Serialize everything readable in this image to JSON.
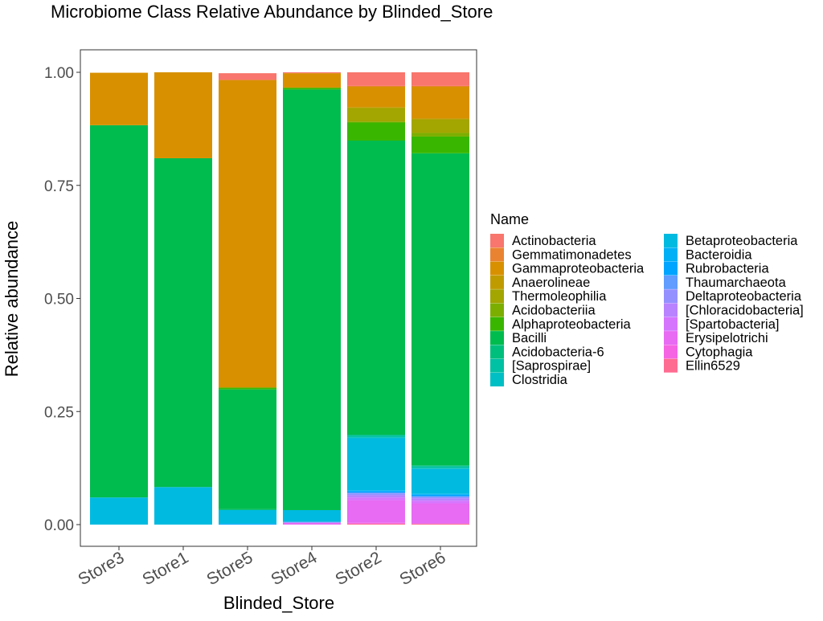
{
  "chart_data": {
    "type": "bar",
    "stacked": true,
    "title": "Microbiome Class Relative Abundance by Blinded_Store",
    "xlabel": "Blinded_Store",
    "ylabel": "Relative abundance",
    "ylim": [
      0,
      1
    ],
    "yticks": [
      0,
      0.25,
      0.5,
      0.75,
      1
    ],
    "ytick_labels": [
      "0.00",
      "0.25",
      "0.50",
      "0.75",
      "1.00"
    ],
    "categories": [
      "Store3",
      "Store1",
      "Store5",
      "Store4",
      "Store2",
      "Store6"
    ],
    "grid": false,
    "legend_position": "right",
    "legend_title": "Name",
    "series": [
      {
        "name": "Actinobacteria",
        "color": "#F8766D",
        "values": [
          0,
          0,
          0.015,
          0.002,
          0.03,
          0.03
        ]
      },
      {
        "name": "Gemmatimonadetes",
        "color": "#EA8331",
        "values": [
          0,
          0,
          0,
          0,
          0.002,
          0.002
        ]
      },
      {
        "name": "Gammaproteobacteria",
        "color": "#D89000",
        "values": [
          0.116,
          0.19,
          0.68,
          0.032,
          0.045,
          0.07
        ]
      },
      {
        "name": "Anaerolineae",
        "color": "#C09B00",
        "values": [
          0,
          0,
          0,
          0,
          0.002,
          0.002
        ]
      },
      {
        "name": "Thermoleophilia",
        "color": "#A3A500",
        "values": [
          0,
          0,
          0,
          0,
          0.03,
          0.03
        ]
      },
      {
        "name": "Acidobacteriia",
        "color": "#7CAE00",
        "values": [
          0,
          0,
          0,
          0,
          0.002,
          0.008
        ]
      },
      {
        "name": "Alphaproteobacteria",
        "color": "#39B600",
        "values": [
          0,
          0,
          0.004,
          0.004,
          0.04,
          0.037
        ]
      },
      {
        "name": "Bacilli",
        "color": "#00BB4E",
        "values": [
          0.823,
          0.727,
          0.265,
          0.93,
          0.65,
          0.69
        ]
      },
      {
        "name": "Acidobacteria-6",
        "color": "#00BF7D",
        "values": [
          0,
          0,
          0.002,
          0,
          0.002,
          0.002
        ]
      },
      {
        "name": "[Saprospirae]",
        "color": "#00C1A3",
        "values": [
          0,
          0,
          0,
          0,
          0.004,
          0.004
        ]
      },
      {
        "name": "Clostridia",
        "color": "#00BFC4",
        "values": [
          0,
          0,
          0,
          0,
          0.002,
          0.002
        ]
      },
      {
        "name": "Betaproteobacteria",
        "color": "#00BAE0",
        "values": [
          0.06,
          0.083,
          0.03,
          0.026,
          0.115,
          0.055
        ]
      },
      {
        "name": "Bacteroidia",
        "color": "#00B0F6",
        "values": [
          0,
          0,
          0,
          0,
          0.002,
          0.002
        ]
      },
      {
        "name": "Rubrobacteria",
        "color": "#00A5FF",
        "values": [
          0,
          0,
          0.002,
          0,
          0.003,
          0.003
        ]
      },
      {
        "name": "Thaumarchaeota",
        "color": "#619CFF",
        "values": [
          0,
          0,
          0,
          0,
          0.002,
          0.002
        ]
      },
      {
        "name": "Deltaproteobacteria",
        "color": "#9590FF",
        "values": [
          0,
          0,
          0,
          0.002,
          0.004,
          0.003
        ]
      },
      {
        "name": "[Chloracidobacteria]",
        "color": "#B983FF",
        "values": [
          0,
          0,
          0,
          0,
          0.005,
          0.005
        ]
      },
      {
        "name": "[Spartobacteria]",
        "color": "#D575FE",
        "values": [
          0,
          0,
          0,
          0,
          0.006,
          0.006
        ]
      },
      {
        "name": "Erysipelotrichi",
        "color": "#E76BF3",
        "values": [
          0,
          0,
          0,
          0.004,
          0.05,
          0.045
        ]
      },
      {
        "name": "Cytophagia",
        "color": "#F564E3",
        "values": [
          0,
          0,
          0,
          0,
          0.002,
          0.0
        ]
      },
      {
        "name": "Ellin6529",
        "color": "#FF6C91",
        "values": [
          0,
          0,
          0,
          0,
          0.002,
          0.002
        ]
      }
    ]
  }
}
